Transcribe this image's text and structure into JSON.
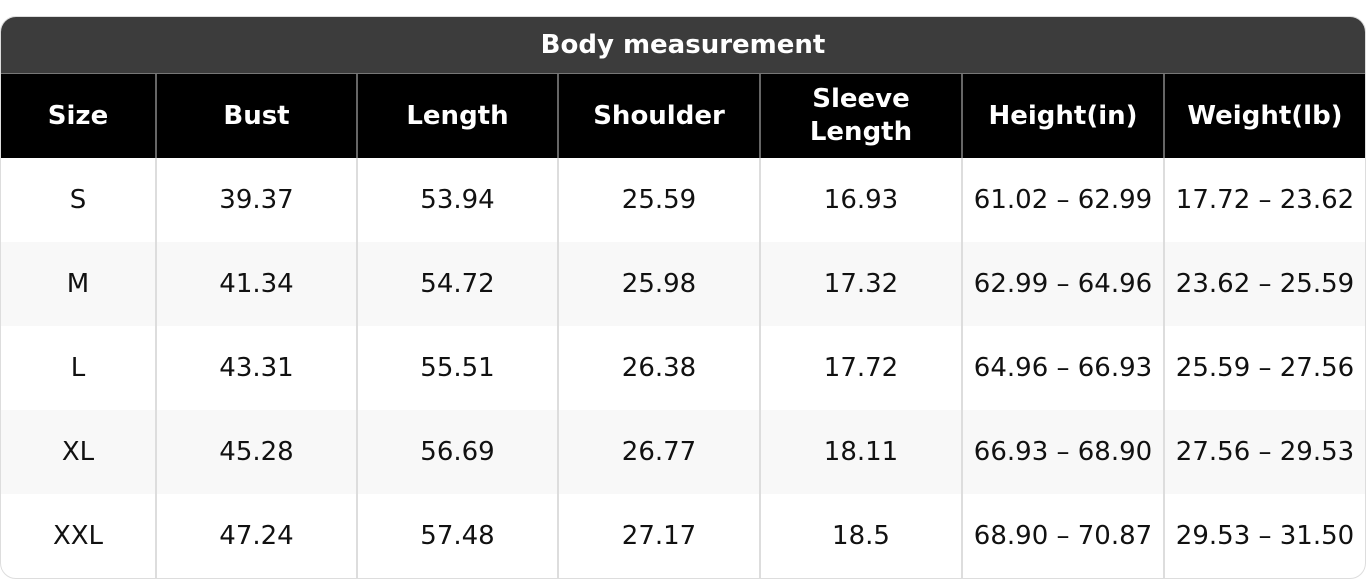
{
  "title": "Body measurement",
  "columns": [
    "Size",
    "Bust",
    "Length",
    "Shoulder",
    "Sleeve Length",
    "Height(in)",
    "Weight(lb)"
  ],
  "rows": [
    [
      "S",
      "39.37",
      "53.94",
      "25.59",
      "16.93",
      "61.02 – 62.99",
      "17.72 – 23.62"
    ],
    [
      "M",
      "41.34",
      "54.72",
      "25.98",
      "17.32",
      "62.99 – 64.96",
      "23.62 – 25.59"
    ],
    [
      "L",
      "43.31",
      "55.51",
      "26.38",
      "17.72",
      "64.96 – 66.93",
      "25.59 – 27.56"
    ],
    [
      "XL",
      "45.28",
      "56.69",
      "26.77",
      "18.11",
      "66.93 – 68.90",
      "27.56 – 29.53"
    ],
    [
      "XXL",
      "47.24",
      "57.48",
      "27.17",
      "18.5",
      "68.90 – 70.87",
      "29.53 – 31.50"
    ]
  ],
  "colors": {
    "title_bg": "#3c3c3c",
    "header_bg": "#000000",
    "alt_row_bg": "#f8f8f8"
  }
}
